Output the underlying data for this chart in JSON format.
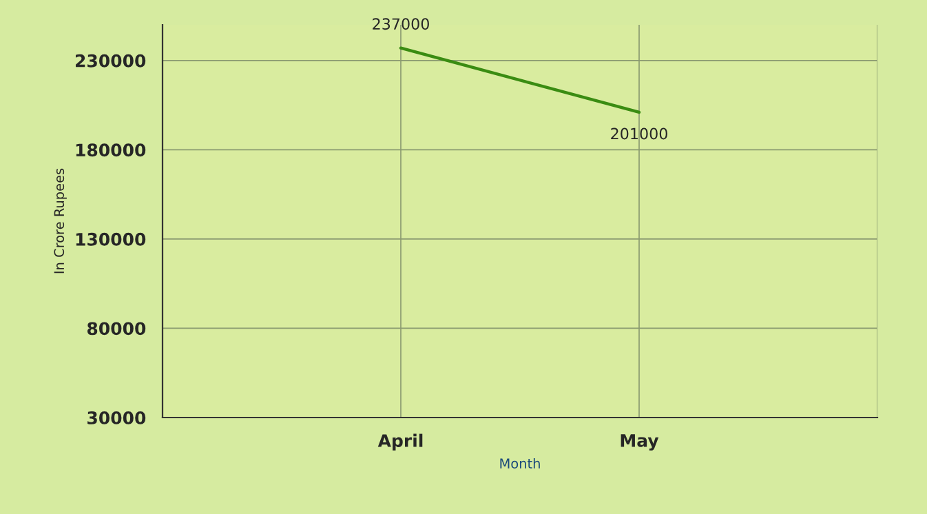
{
  "chart_data": {
    "type": "line",
    "xlabel": "Month",
    "ylabel": "In Crore Rupees",
    "categories": [
      "April",
      "May"
    ],
    "series": [
      {
        "color": "#3a8c12",
        "values": [
          237000,
          201000
        ]
      }
    ],
    "ylim": [
      30000,
      250000
    ],
    "yticks": [
      30000,
      80000,
      130000,
      180000,
      230000
    ],
    "grid": true,
    "data_labels": true,
    "marker": "none",
    "line_style": "solid"
  }
}
